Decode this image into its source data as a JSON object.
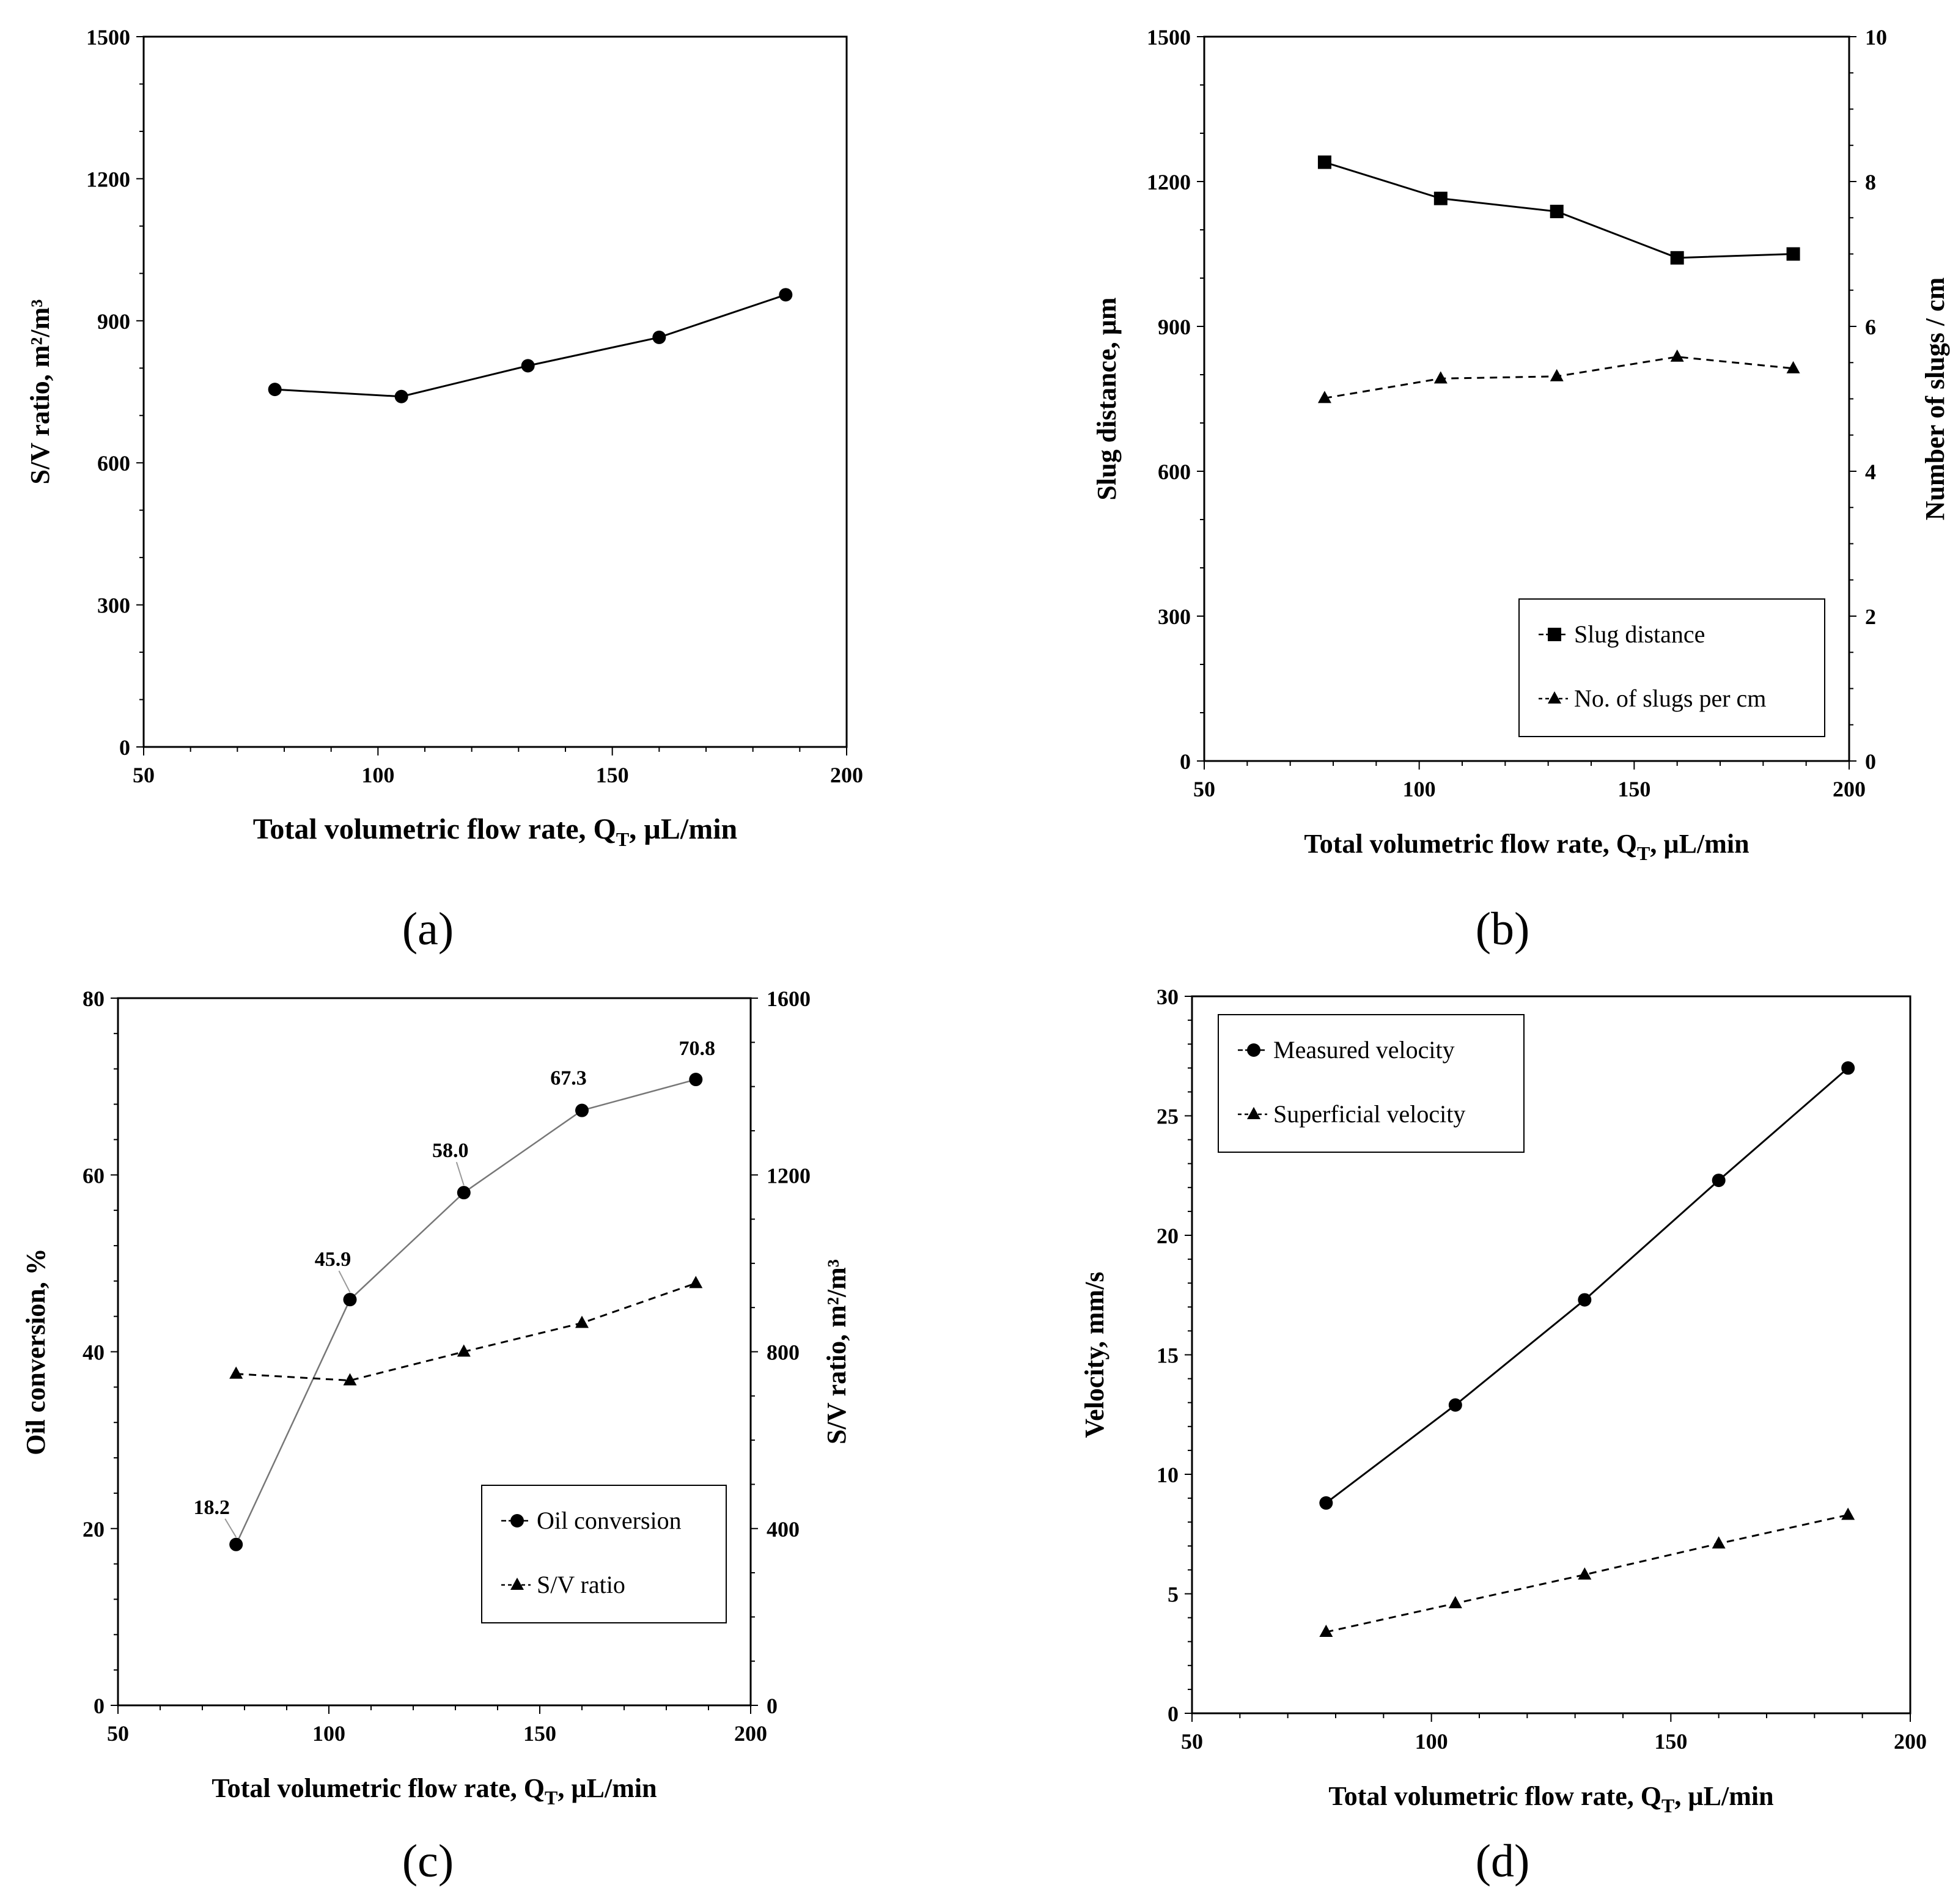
{
  "chart_data": [
    {
      "id": "a",
      "type": "line",
      "caption": "(a)",
      "xlabel": "Total volumetric flow rate, Q",
      "xlabel_sub": "T",
      "xlabel_tail": ", µL/min",
      "ylabel": "S/V ratio, m²/m³",
      "xlim": [
        50,
        200
      ],
      "ylim": [
        0,
        1500
      ],
      "xticks": [
        50,
        100,
        150,
        200
      ],
      "yticks": [
        0,
        300,
        600,
        900,
        1200,
        1500
      ],
      "series": [
        {
          "name": "S/V ratio",
          "marker": "circle",
          "line": "solid",
          "x": [
            78,
            105,
            132,
            160,
            187
          ],
          "y": [
            755,
            740,
            805,
            865,
            955
          ]
        }
      ]
    },
    {
      "id": "b",
      "type": "line",
      "caption": "(b)",
      "xlabel": "Total volumetric flow rate, Q",
      "xlabel_sub": "T",
      "xlabel_tail": ", µL/min",
      "ylabel": "Slug distance, µm",
      "y2label": "Number of slugs / cm",
      "xlim": [
        50,
        200
      ],
      "ylim": [
        0,
        1500
      ],
      "y2lim": [
        0,
        10
      ],
      "xticks": [
        50,
        100,
        150,
        200
      ],
      "yticks": [
        0,
        300,
        600,
        900,
        1200,
        1500
      ],
      "y2ticks": [
        0,
        2,
        4,
        6,
        8,
        10
      ],
      "series": [
        {
          "name": "Slug distance",
          "marker": "square",
          "line": "solid",
          "axis": "left",
          "x": [
            78,
            105,
            132,
            160,
            187
          ],
          "y": [
            1240,
            1165,
            1138,
            1042,
            1050
          ]
        },
        {
          "name": "No. of slugs per cm",
          "marker": "triangle",
          "line": "dashed",
          "axis": "right",
          "x": [
            78,
            105,
            132,
            160,
            187
          ],
          "y": [
            5.01,
            5.28,
            5.31,
            5.58,
            5.42
          ]
        }
      ],
      "legend_position": "bottom-right"
    },
    {
      "id": "c",
      "type": "line",
      "caption": "(c)",
      "xlabel": "Total volumetric flow rate, Q",
      "xlabel_sub": "T",
      "xlabel_tail": ", µL/min",
      "ylabel": "Oil conversion, %",
      "y2label": "S/V ratio, m²/m³",
      "xlim": [
        50,
        200
      ],
      "ylim": [
        0,
        80
      ],
      "y2lim": [
        0,
        1600
      ],
      "xticks": [
        50,
        100,
        150,
        200
      ],
      "yticks": [
        0,
        20,
        40,
        60,
        80
      ],
      "y2ticks": [
        0,
        400,
        800,
        1200,
        1600
      ],
      "series": [
        {
          "name": "Oil conversion",
          "marker": "circle",
          "line": "solid",
          "axis": "left",
          "x": [
            78,
            105,
            132,
            160,
            187
          ],
          "y": [
            18.2,
            45.9,
            58.0,
            67.3,
            70.8
          ],
          "labels": [
            "18.2",
            "45.9",
            "58.0",
            "67.3",
            "70.8"
          ]
        },
        {
          "name": "S/V ratio",
          "marker": "triangle",
          "line": "dashed",
          "axis": "right",
          "x": [
            78,
            105,
            132,
            160,
            187
          ],
          "y": [
            750,
            735,
            800,
            865,
            955
          ]
        }
      ],
      "legend_position": "bottom-right"
    },
    {
      "id": "d",
      "type": "line",
      "caption": "(d)",
      "xlabel": "Total volumetric flow rate, Q",
      "xlabel_sub": "T",
      "xlabel_tail": ", µL/min",
      "ylabel": "Velocity, mm/s",
      "xlim": [
        50,
        200
      ],
      "ylim": [
        0,
        30
      ],
      "xticks": [
        50,
        100,
        150,
        200
      ],
      "yticks": [
        0,
        5,
        10,
        15,
        20,
        25,
        30
      ],
      "series": [
        {
          "name": "Measured velocity",
          "marker": "circle",
          "line": "solid",
          "x": [
            78,
            105,
            132,
            160,
            187
          ],
          "y": [
            8.8,
            12.9,
            17.3,
            22.3,
            27.0
          ]
        },
        {
          "name": "Superficial velocity",
          "marker": "triangle",
          "line": "dashed",
          "x": [
            78,
            105,
            132,
            160,
            187
          ],
          "y": [
            3.4,
            4.6,
            5.8,
            7.1,
            8.3
          ]
        }
      ],
      "legend_position": "top-left"
    }
  ]
}
